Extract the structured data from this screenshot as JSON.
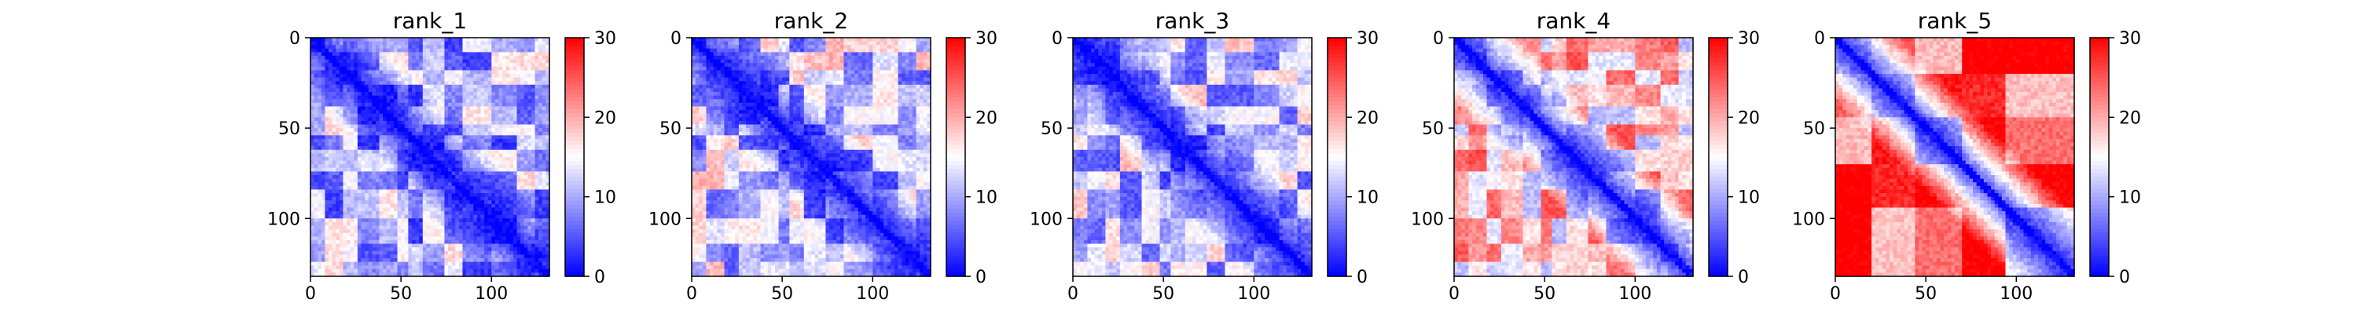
{
  "chart_data": [
    {
      "type": "heatmap",
      "title": "rank_1",
      "x_ticks": [
        0,
        50,
        100
      ],
      "y_ticks": [
        0,
        50,
        100
      ],
      "xlim": [
        0,
        132
      ],
      "ylim": [
        132,
        0
      ],
      "colorbar": {
        "ticks": [
          0,
          10,
          20,
          30
        ],
        "range": [
          0,
          30
        ],
        "colormap": "bwr"
      },
      "far_region_level": 0.35,
      "segments": [
        0,
        8,
        18,
        26,
        38,
        48,
        55,
        62,
        75,
        84,
        100,
        115,
        125,
        132
      ]
    },
    {
      "type": "heatmap",
      "title": "rank_2",
      "x_ticks": [
        0,
        50,
        100
      ],
      "y_ticks": [
        0,
        50,
        100
      ],
      "xlim": [
        0,
        132
      ],
      "ylim": [
        132,
        0
      ],
      "colorbar": {
        "ticks": [
          0,
          10,
          20,
          30
        ],
        "range": [
          0,
          30
        ],
        "colormap": "bwr"
      },
      "far_region_level": 0.4,
      "segments": [
        0,
        8,
        18,
        26,
        38,
        48,
        55,
        62,
        75,
        84,
        100,
        115,
        125,
        132
      ]
    },
    {
      "type": "heatmap",
      "title": "rank_3",
      "x_ticks": [
        0,
        50,
        100
      ],
      "y_ticks": [
        0,
        50,
        100
      ],
      "xlim": [
        0,
        132
      ],
      "ylim": [
        132,
        0
      ],
      "colorbar": {
        "ticks": [
          0,
          10,
          20,
          30
        ],
        "range": [
          0,
          30
        ],
        "colormap": "bwr"
      },
      "far_region_level": 0.4,
      "segments": [
        0,
        8,
        18,
        26,
        38,
        48,
        55,
        62,
        75,
        84,
        100,
        115,
        125,
        132
      ]
    },
    {
      "type": "heatmap",
      "title": "rank_4",
      "x_ticks": [
        0,
        50,
        100
      ],
      "y_ticks": [
        0,
        50,
        100
      ],
      "xlim": [
        0,
        132
      ],
      "ylim": [
        132,
        0
      ],
      "colorbar": {
        "ticks": [
          0,
          10,
          20,
          30
        ],
        "range": [
          0,
          30
        ],
        "colormap": "bwr"
      },
      "far_region_level": 0.6,
      "segments": [
        0,
        8,
        18,
        26,
        38,
        48,
        55,
        62,
        75,
        84,
        100,
        115,
        125,
        132
      ]
    },
    {
      "type": "heatmap",
      "title": "rank_5",
      "x_ticks": [
        0,
        50,
        100
      ],
      "y_ticks": [
        0,
        50,
        100
      ],
      "xlim": [
        0,
        132
      ],
      "ylim": [
        132,
        0
      ],
      "colorbar": {
        "ticks": [
          0,
          10,
          20,
          30
        ],
        "range": [
          0,
          30
        ],
        "colormap": "bwr"
      },
      "far_region_level": 0.8,
      "segments": [
        0,
        20,
        45,
        70,
        95,
        132
      ]
    }
  ]
}
